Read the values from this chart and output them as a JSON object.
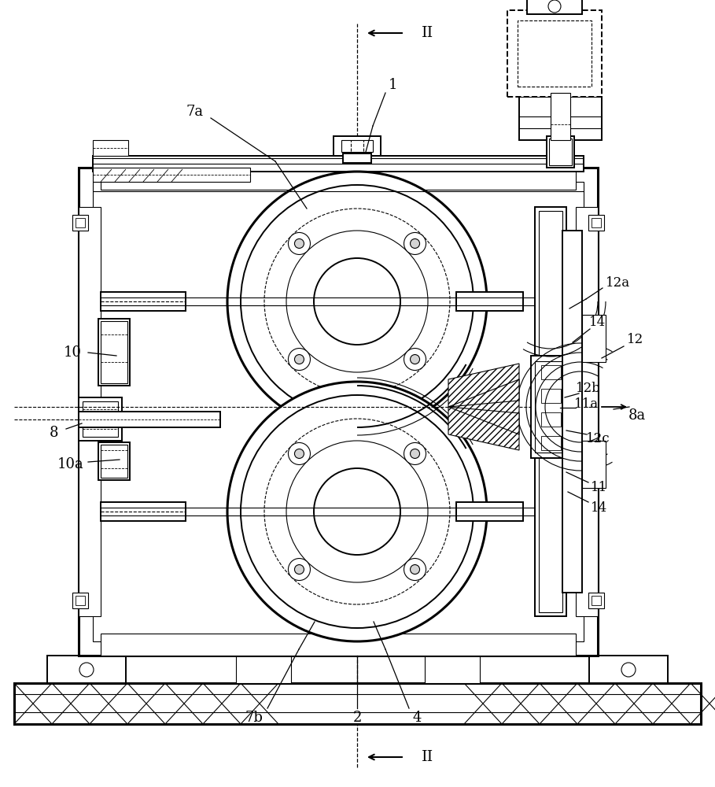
{
  "bg_color": "#ffffff",
  "line_color": "#000000",
  "fig_width": 9.09,
  "fig_height": 10.0,
  "dpi": 100,
  "labels": {
    "II_top": "II",
    "II_bottom": "II",
    "1": "1",
    "2": "2",
    "4": "4",
    "7a": "7a",
    "7b": "7b",
    "8": "8",
    "8a": "8a",
    "10": "10",
    "10a": "10a",
    "11": "11",
    "11a": "11a",
    "12": "12",
    "12a": "12a",
    "12b": "12b",
    "12c": "12c",
    "14_top": "14",
    "14_bot": "14"
  }
}
